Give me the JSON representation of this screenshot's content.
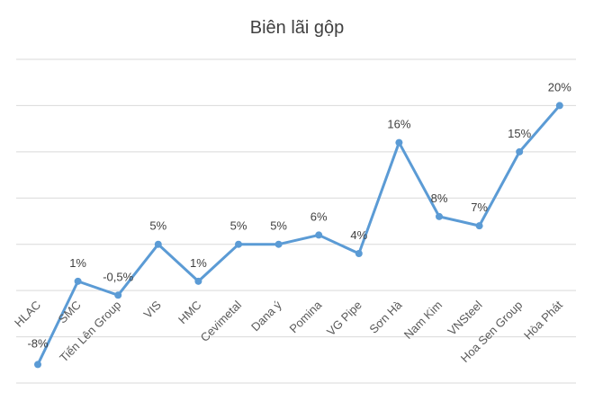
{
  "chart_data": {
    "type": "line",
    "title": "Biên lãi gộp",
    "xlabel": "",
    "ylabel": "",
    "categories": [
      "HLAC",
      "SMC",
      "Tiến Lên Group",
      "VIS",
      "HMC",
      "Cevimetal",
      "Dana ý",
      "Pomina",
      "VG Pipe",
      "Sơn Hà",
      "Nam Kim",
      "VNSteel",
      "Hoa Sen Group",
      "Hòa Phát"
    ],
    "values": [
      -8,
      1,
      -0.5,
      5,
      1,
      5,
      5,
      6,
      4,
      16,
      8,
      7,
      15,
      20
    ],
    "data_labels": [
      "-8%",
      "1%",
      "-0,5%",
      "5%",
      "1%",
      "5%",
      "5%",
      "6%",
      "4%",
      "16%",
      "8%",
      "7%",
      "15%",
      "20%"
    ],
    "ylim": [
      -10,
      25
    ],
    "grid": true,
    "legend": "none",
    "line_color": "#5b9bd5"
  }
}
